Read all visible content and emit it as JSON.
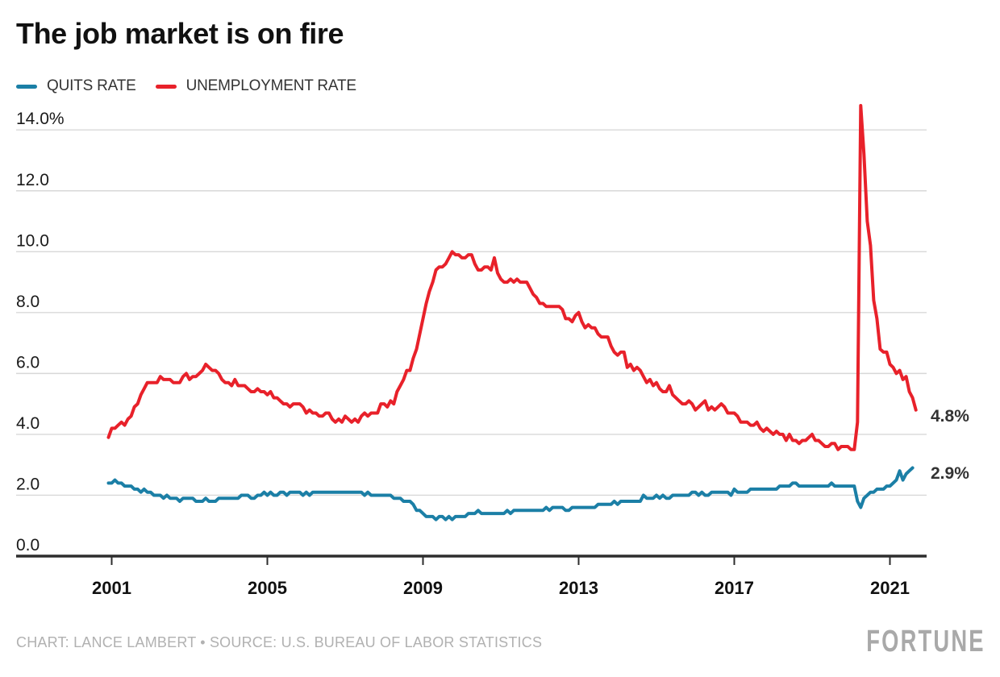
{
  "header": {
    "title": "The job market is on fire"
  },
  "footer": {
    "credit": "CHART: LANCE LAMBERT • SOURCE: U.S. BUREAU OF LABOR STATISTICS",
    "brand": "FORTUNE"
  },
  "colors": {
    "quits_blue": "#1b7fa6",
    "unemployment_red": "#e8212a",
    "grid_gray": "#d8d8d8",
    "axis_dark": "#2d2d2d",
    "tick_text": "#1a1a1a",
    "muted_gray": "#b1b1b1"
  },
  "chart_data": {
    "type": "line",
    "title": "The job market is on fire",
    "xlabel": "",
    "ylabel": "",
    "grid": "horizontal",
    "legend_position": "top-left",
    "xlim": [
      2000.75,
      2021.95
    ],
    "ylim": [
      0,
      14.8
    ],
    "x_ticks": {
      "values": [
        2001,
        2005,
        2009,
        2013,
        2017,
        2021
      ],
      "labels": [
        "2001",
        "2005",
        "2009",
        "2013",
        "2017",
        "2021"
      ]
    },
    "y_ticks": {
      "values": [
        0,
        2,
        4,
        6,
        8,
        10,
        12,
        14
      ],
      "labels": [
        "0.0",
        "2.0",
        "4.0",
        "6.0",
        "8.0",
        "10.0",
        "12.0",
        "14.0%"
      ]
    },
    "frequency": "monthly",
    "series": [
      {
        "name": "QUITS RATE",
        "color": "#1b7fa6",
        "end_label": "2.9%",
        "start_year": 2000,
        "start_month": 12,
        "values": [
          2.4,
          2.4,
          2.5,
          2.4,
          2.4,
          2.3,
          2.3,
          2.3,
          2.2,
          2.2,
          2.1,
          2.2,
          2.1,
          2.1,
          2.0,
          2.0,
          2.0,
          1.9,
          2.0,
          1.9,
          1.9,
          1.9,
          1.8,
          1.9,
          1.9,
          1.9,
          1.9,
          1.8,
          1.8,
          1.8,
          1.9,
          1.8,
          1.8,
          1.8,
          1.9,
          1.9,
          1.9,
          1.9,
          1.9,
          1.9,
          1.9,
          2.0,
          2.0,
          2.0,
          1.9,
          1.9,
          2.0,
          2.0,
          2.1,
          2.0,
          2.1,
          2.0,
          2.0,
          2.1,
          2.1,
          2.0,
          2.1,
          2.1,
          2.1,
          2.1,
          2.0,
          2.1,
          2.0,
          2.1,
          2.1,
          2.1,
          2.1,
          2.1,
          2.1,
          2.1,
          2.1,
          2.1,
          2.1,
          2.1,
          2.1,
          2.1,
          2.1,
          2.1,
          2.1,
          2.0,
          2.1,
          2.0,
          2.0,
          2.0,
          2.0,
          2.0,
          2.0,
          2.0,
          1.9,
          1.9,
          1.9,
          1.8,
          1.8,
          1.8,
          1.7,
          1.5,
          1.5,
          1.4,
          1.3,
          1.3,
          1.3,
          1.2,
          1.3,
          1.3,
          1.2,
          1.3,
          1.2,
          1.3,
          1.3,
          1.3,
          1.3,
          1.4,
          1.4,
          1.4,
          1.5,
          1.4,
          1.4,
          1.4,
          1.4,
          1.4,
          1.4,
          1.4,
          1.4,
          1.5,
          1.4,
          1.5,
          1.5,
          1.5,
          1.5,
          1.5,
          1.5,
          1.5,
          1.5,
          1.5,
          1.5,
          1.6,
          1.5,
          1.6,
          1.6,
          1.6,
          1.6,
          1.5,
          1.5,
          1.6,
          1.6,
          1.6,
          1.6,
          1.6,
          1.6,
          1.6,
          1.6,
          1.7,
          1.7,
          1.7,
          1.7,
          1.7,
          1.8,
          1.7,
          1.8,
          1.8,
          1.8,
          1.8,
          1.8,
          1.8,
          1.8,
          2.0,
          1.9,
          1.9,
          1.9,
          2.0,
          1.9,
          2.0,
          1.9,
          1.9,
          2.0,
          2.0,
          2.0,
          2.0,
          2.0,
          2.0,
          2.1,
          2.1,
          2.0,
          2.1,
          2.0,
          2.0,
          2.1,
          2.1,
          2.1,
          2.1,
          2.1,
          2.1,
          2.0,
          2.2,
          2.1,
          2.1,
          2.1,
          2.1,
          2.2,
          2.2,
          2.2,
          2.2,
          2.2,
          2.2,
          2.2,
          2.2,
          2.2,
          2.3,
          2.3,
          2.3,
          2.3,
          2.4,
          2.4,
          2.3,
          2.3,
          2.3,
          2.3,
          2.3,
          2.3,
          2.3,
          2.3,
          2.3,
          2.3,
          2.4,
          2.3,
          2.3,
          2.3,
          2.3,
          2.3,
          2.3,
          2.3,
          1.8,
          1.6,
          1.9,
          2.0,
          2.1,
          2.1,
          2.2,
          2.2,
          2.2,
          2.3,
          2.3,
          2.4,
          2.5,
          2.8,
          2.5,
          2.7,
          2.8,
          2.9
        ]
      },
      {
        "name": "UNEMPLOYMENT RATE",
        "color": "#e8212a",
        "end_label": "4.8%",
        "start_year": 2000,
        "start_month": 12,
        "values": [
          3.9,
          4.2,
          4.2,
          4.3,
          4.4,
          4.3,
          4.5,
          4.6,
          4.9,
          5.0,
          5.3,
          5.5,
          5.7,
          5.7,
          5.7,
          5.7,
          5.9,
          5.8,
          5.8,
          5.8,
          5.7,
          5.7,
          5.7,
          5.9,
          6.0,
          5.8,
          5.9,
          5.9,
          6.0,
          6.1,
          6.3,
          6.2,
          6.1,
          6.1,
          6.0,
          5.8,
          5.7,
          5.7,
          5.6,
          5.8,
          5.6,
          5.6,
          5.6,
          5.5,
          5.4,
          5.4,
          5.5,
          5.4,
          5.4,
          5.3,
          5.4,
          5.2,
          5.2,
          5.1,
          5.0,
          5.0,
          4.9,
          5.0,
          5.0,
          5.0,
          4.9,
          4.7,
          4.8,
          4.7,
          4.7,
          4.6,
          4.6,
          4.7,
          4.7,
          4.5,
          4.4,
          4.5,
          4.4,
          4.6,
          4.5,
          4.4,
          4.5,
          4.4,
          4.6,
          4.7,
          4.6,
          4.7,
          4.7,
          4.7,
          5.0,
          5.0,
          4.9,
          5.1,
          5.0,
          5.4,
          5.6,
          5.8,
          6.1,
          6.1,
          6.5,
          6.8,
          7.3,
          7.8,
          8.3,
          8.7,
          9.0,
          9.4,
          9.5,
          9.5,
          9.6,
          9.8,
          10.0,
          9.9,
          9.9,
          9.8,
          9.8,
          9.9,
          9.9,
          9.6,
          9.4,
          9.4,
          9.5,
          9.5,
          9.4,
          9.8,
          9.3,
          9.1,
          9.0,
          9.0,
          9.1,
          9.0,
          9.1,
          9.0,
          9.0,
          9.0,
          8.8,
          8.6,
          8.5,
          8.3,
          8.3,
          8.2,
          8.2,
          8.2,
          8.2,
          8.2,
          8.1,
          7.8,
          7.8,
          7.7,
          7.9,
          8.0,
          7.7,
          7.5,
          7.6,
          7.5,
          7.5,
          7.3,
          7.2,
          7.2,
          7.2,
          6.9,
          6.7,
          6.6,
          6.7,
          6.7,
          6.2,
          6.3,
          6.1,
          6.2,
          6.1,
          5.9,
          5.7,
          5.8,
          5.6,
          5.7,
          5.5,
          5.4,
          5.4,
          5.6,
          5.3,
          5.2,
          5.1,
          5.0,
          5.0,
          5.1,
          5.0,
          4.8,
          4.9,
          5.0,
          5.1,
          4.8,
          4.9,
          4.8,
          4.9,
          5.0,
          4.9,
          4.7,
          4.7,
          4.7,
          4.6,
          4.4,
          4.4,
          4.4,
          4.3,
          4.3,
          4.4,
          4.2,
          4.1,
          4.2,
          4.1,
          4.0,
          4.1,
          4.0,
          4.0,
          3.8,
          4.0,
          3.8,
          3.8,
          3.7,
          3.8,
          3.8,
          3.9,
          4.0,
          3.8,
          3.8,
          3.7,
          3.6,
          3.6,
          3.7,
          3.7,
          3.5,
          3.6,
          3.6,
          3.6,
          3.5,
          3.5,
          4.4,
          14.8,
          13.2,
          11.0,
          10.2,
          8.4,
          7.8,
          6.8,
          6.7,
          6.7,
          6.3,
          6.2,
          6.0,
          6.1,
          5.8,
          5.9,
          5.4,
          5.2,
          4.8
        ]
      }
    ]
  }
}
